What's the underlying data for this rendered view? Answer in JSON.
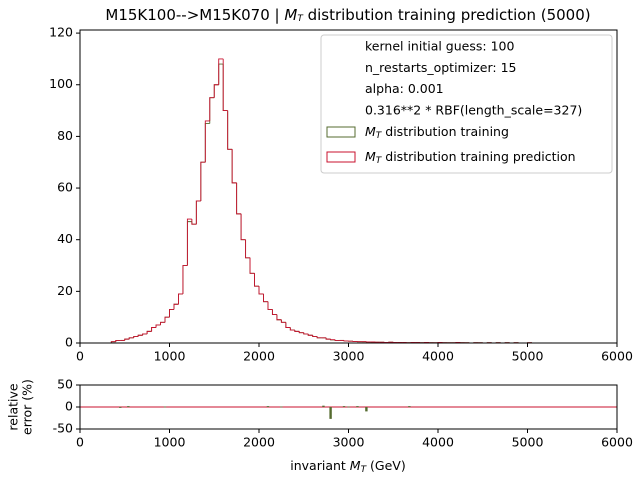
{
  "chart_data": [
    {
      "type": "histogram",
      "title": "M15K100-->M15K070 | MT distribution training prediction (5000)",
      "bins": [
        300,
        350,
        400,
        450,
        500,
        550,
        600,
        650,
        700,
        750,
        800,
        850,
        900,
        950,
        1000,
        1050,
        1100,
        1150,
        1200,
        1250,
        1300,
        1350,
        1400,
        1450,
        1500,
        1550,
        1600,
        1650,
        1700,
        1750,
        1800,
        1850,
        1900,
        1950,
        2000,
        2050,
        2100,
        2150,
        2200,
        2250,
        2300,
        2350,
        2400,
        2450,
        2500,
        2550,
        2600,
        2650,
        2700,
        2750,
        2800,
        2850,
        2900,
        2950,
        3000,
        3050,
        3100,
        3150,
        3200,
        3250,
        3300,
        3350,
        3400,
        3450,
        3500,
        3550,
        3600,
        3650,
        3700,
        3750,
        3800,
        3850,
        3900,
        3950,
        4000,
        4050,
        4100,
        4150,
        4200,
        4250,
        4300,
        4350,
        4400,
        4450,
        4500,
        4550,
        4600,
        4650,
        4700,
        4750,
        4800,
        4850,
        4900,
        4950,
        5000,
        5050,
        5100
      ],
      "series": [
        {
          "name": "MT distribution training",
          "color": "#556b2f",
          "values": [
            0,
            0.5,
            1,
            1,
            1.5,
            2,
            2.5,
            3,
            3.5,
            4.5,
            6,
            7,
            8,
            10,
            13,
            15,
            19,
            30,
            47,
            46,
            55,
            70,
            85,
            95,
            100,
            108,
            90,
            75,
            62,
            50,
            40,
            33,
            27,
            22,
            19,
            16,
            13,
            11,
            9,
            8,
            6,
            5,
            4.5,
            4,
            3.5,
            3,
            2.5,
            2,
            2,
            1.5,
            1.2,
            1,
            1,
            0.8,
            0.7,
            0.6,
            0.5,
            0.5,
            0.4,
            0.4,
            0.3,
            0.3,
            0.2,
            0.3,
            0.2,
            0.2,
            0.2,
            0.1,
            0.2,
            0.2,
            0.1,
            0.2,
            0.1,
            0.1,
            0.2,
            0.1,
            0.1,
            0.1,
            0.2,
            0.1,
            0.1,
            0,
            0.1,
            0.1,
            0,
            0.1,
            0,
            0.1,
            0,
            0.1,
            0,
            0.1,
            0,
            0,
            0.1,
            0
          ]
        },
        {
          "name": "MT distribution training prediction",
          "color": "#c8102e",
          "values": [
            0,
            0.5,
            1,
            1,
            1.5,
            2,
            2.5,
            3,
            3.5,
            4.5,
            6,
            7,
            8,
            10,
            13,
            15,
            19,
            30,
            48,
            46,
            55,
            70,
            86,
            95,
            100,
            110,
            90,
            75,
            62,
            50,
            40,
            33,
            27,
            22,
            19,
            16,
            13,
            11,
            9,
            8,
            6,
            5,
            4.5,
            4,
            3.5,
            3,
            2.5,
            2,
            2,
            1.5,
            1.3,
            1,
            1,
            0.8,
            0.7,
            0.6,
            0.5,
            0.5,
            0.4,
            0.4,
            0.3,
            0.3,
            0.2,
            0.3,
            0.2,
            0.2,
            0.2,
            0.1,
            0.2,
            0.2,
            0.1,
            0.2,
            0.1,
            0.1,
            0.2,
            0.1,
            0.1,
            0.1,
            0.2,
            0.1,
            0.1,
            0,
            0.1,
            0.1,
            0,
            0.1,
            0,
            0.1,
            0,
            0.1,
            0,
            0.1,
            0,
            0,
            0.1,
            0
          ]
        }
      ],
      "legend_text": [
        "kernel initial guess: 100",
        "n_restarts_optimizer: 15",
        "alpha: 0.001",
        "0.316**2 * RBF(length_scale=327)"
      ],
      "xlim": [
        0,
        6000
      ],
      "xticks": [
        0,
        1000,
        2000,
        3000,
        4000,
        5000,
        6000
      ],
      "ylim": [
        0,
        121.2
      ],
      "yticks": [
        0,
        20,
        40,
        60,
        80,
        100,
        120
      ]
    },
    {
      "type": "bar",
      "x": [
        450,
        540,
        950,
        2100,
        2250,
        2720,
        2800,
        2950,
        3000,
        3100,
        3200,
        3680
      ],
      "values": [
        -2,
        2,
        1,
        2,
        1,
        3,
        -27,
        2,
        1,
        2,
        -10,
        2
      ],
      "color": "#556b2f",
      "hline": 0,
      "hline_color": "#c8102e",
      "ylabel": [
        "relative",
        "error (%)"
      ],
      "xlabel": "invariant MT (GeV)",
      "xlim": [
        0,
        6000
      ],
      "xticks": [
        0,
        1000,
        2000,
        3000,
        4000,
        5000,
        6000
      ],
      "ylim": [
        -50,
        50
      ],
      "yticks": [
        -50,
        0,
        50
      ]
    }
  ]
}
